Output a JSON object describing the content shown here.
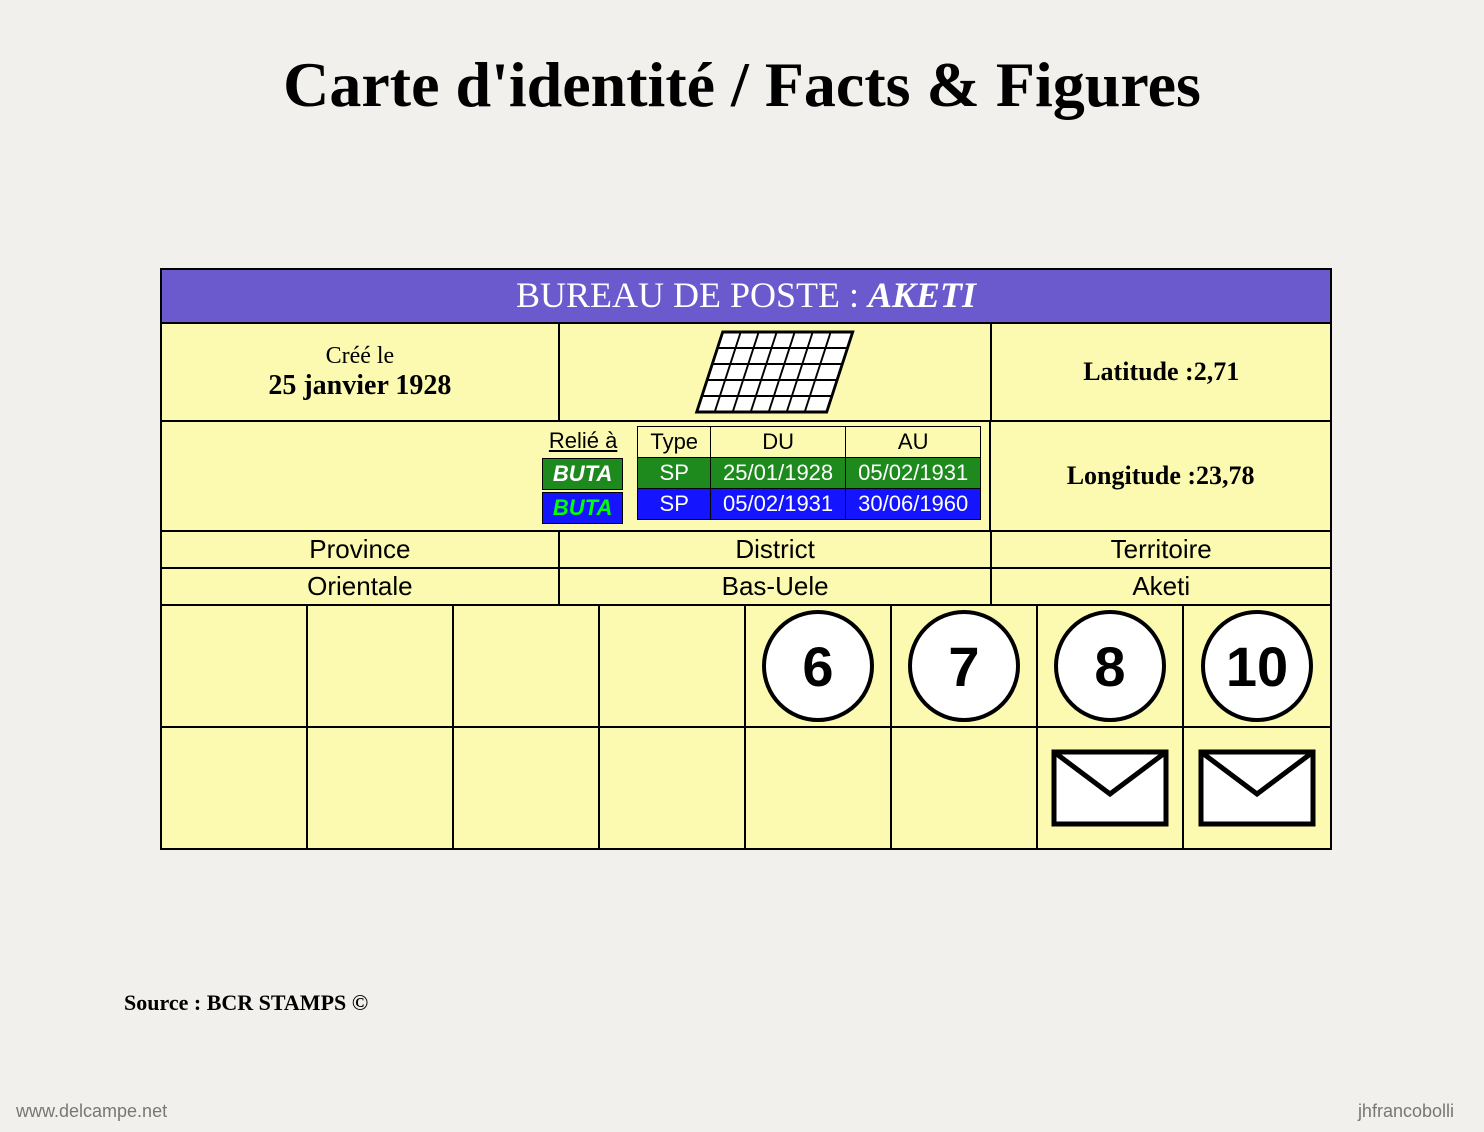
{
  "page": {
    "title": "Carte d'identité / Facts & Figures",
    "bg_color": "#f2f0ec"
  },
  "header": {
    "prefix": "BUREAU DE POSTE : ",
    "name": "AKETI",
    "bg_color": "#6a5acd",
    "text_color": "#ffffff"
  },
  "creation": {
    "label": "Créé le",
    "date": "25 janvier 1928"
  },
  "coords": {
    "lat_label": "Latitude : ",
    "lat_value": "2,71",
    "lon_label": "Longitude : ",
    "lon_value": "23,78"
  },
  "relie": {
    "label": "Relié à",
    "rows": [
      {
        "value": "BUTA",
        "bg": "#1e8a1e"
      },
      {
        "value": "BUTA",
        "bg": "#1414ff",
        "text": "#00ff00"
      }
    ]
  },
  "history": {
    "columns": [
      "Type",
      "DU",
      "AU"
    ],
    "rows": [
      {
        "type": "SP",
        "du": "25/01/1928",
        "au": "05/02/1931",
        "bg": "#1e8a1e"
      },
      {
        "type": "SP",
        "du": "05/02/1931",
        "au": "30/06/1960",
        "bg": "#1414ff"
      }
    ]
  },
  "admin": {
    "headers": [
      "Province",
      "District",
      "Territoire"
    ],
    "values": [
      "Orientale",
      "Bas-Uele",
      "Aketi"
    ]
  },
  "grid": {
    "cell_bg": "#fbfab0",
    "columns": 8,
    "col_widths_pct": [
      12.5,
      12.5,
      12.5,
      12.5,
      12.5,
      12.5,
      12.5,
      12.5
    ],
    "row_circles": [
      "",
      "",
      "",
      "",
      "6",
      "7",
      "8",
      "10"
    ],
    "row_envelopes": [
      false,
      false,
      false,
      false,
      false,
      false,
      true,
      true
    ]
  },
  "source": "Source : BCR STAMPS ©",
  "watermark_left": "www.delcampe.net",
  "watermark_right": "jhfrancobolli",
  "styling": {
    "border_color": "#000000",
    "circle_bg": "#ffffff",
    "circle_border": "#000000",
    "title_fontsize": 64,
    "header_fontsize": 36,
    "body_fontsize": 26,
    "circle_fontsize": 56
  }
}
